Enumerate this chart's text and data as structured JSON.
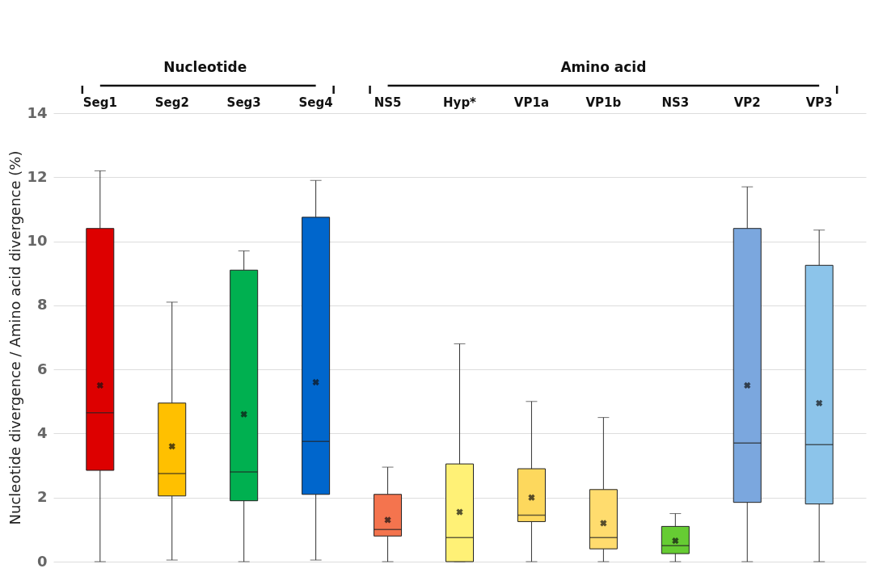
{
  "chart_data": {
    "type": "box",
    "ylabel": "Nucleotide divergence / Amino acid divergence (%)",
    "categories": [
      "Seg1",
      "Seg2",
      "Seg3",
      "Seg4",
      "NS5",
      "Hyp*",
      "VP1a",
      "VP1b",
      "NS3",
      "VP2",
      "VP3"
    ],
    "colors": [
      "#dd0000",
      "#ffc000",
      "#00b050",
      "#0066cc",
      "#f4744e",
      "#fff176",
      "#fdd85d",
      "#ffdc6e",
      "#66cc33",
      "#7ba7de",
      "#8cc4ea"
    ],
    "boxes": [
      {
        "low": 0,
        "q1": 2.85,
        "median": 4.65,
        "q3": 10.4,
        "high": 12.2,
        "mean": 5.5
      },
      {
        "low": 0.05,
        "q1": 2.05,
        "median": 2.75,
        "q3": 4.95,
        "high": 8.1,
        "mean": 3.6
      },
      {
        "low": 0,
        "q1": 1.9,
        "median": 2.8,
        "q3": 9.1,
        "high": 9.7,
        "mean": 4.6
      },
      {
        "low": 0.05,
        "q1": 2.1,
        "median": 3.75,
        "q3": 10.75,
        "high": 11.9,
        "mean": 5.6
      },
      {
        "low": 0,
        "q1": 0.8,
        "median": 1.0,
        "q3": 2.1,
        "high": 2.95,
        "mean": 1.3
      },
      {
        "low": 0,
        "q1": 0,
        "median": 0.75,
        "q3": 3.05,
        "high": 6.8,
        "mean": 1.55
      },
      {
        "low": 0,
        "q1": 1.25,
        "median": 1.45,
        "q3": 2.9,
        "high": 5.0,
        "mean": 2.0
      },
      {
        "low": 0,
        "q1": 0.4,
        "median": 0.75,
        "q3": 2.25,
        "high": 4.5,
        "mean": 1.2
      },
      {
        "low": 0,
        "q1": 0.25,
        "median": 0.5,
        "q3": 1.1,
        "high": 1.5,
        "mean": 0.65
      },
      {
        "low": 0,
        "q1": 1.85,
        "median": 3.7,
        "q3": 10.4,
        "high": 11.7,
        "mean": 5.5
      },
      {
        "low": 0,
        "q1": 1.8,
        "median": 3.65,
        "q3": 9.25,
        "high": 10.35,
        "mean": 4.95
      }
    ],
    "ylim": [
      0,
      14
    ],
    "yticks": [
      0,
      2,
      4,
      6,
      8,
      10,
      12,
      14
    ],
    "grid": "y",
    "annotations": [
      "Nucleotide",
      "Amino acid"
    ]
  }
}
